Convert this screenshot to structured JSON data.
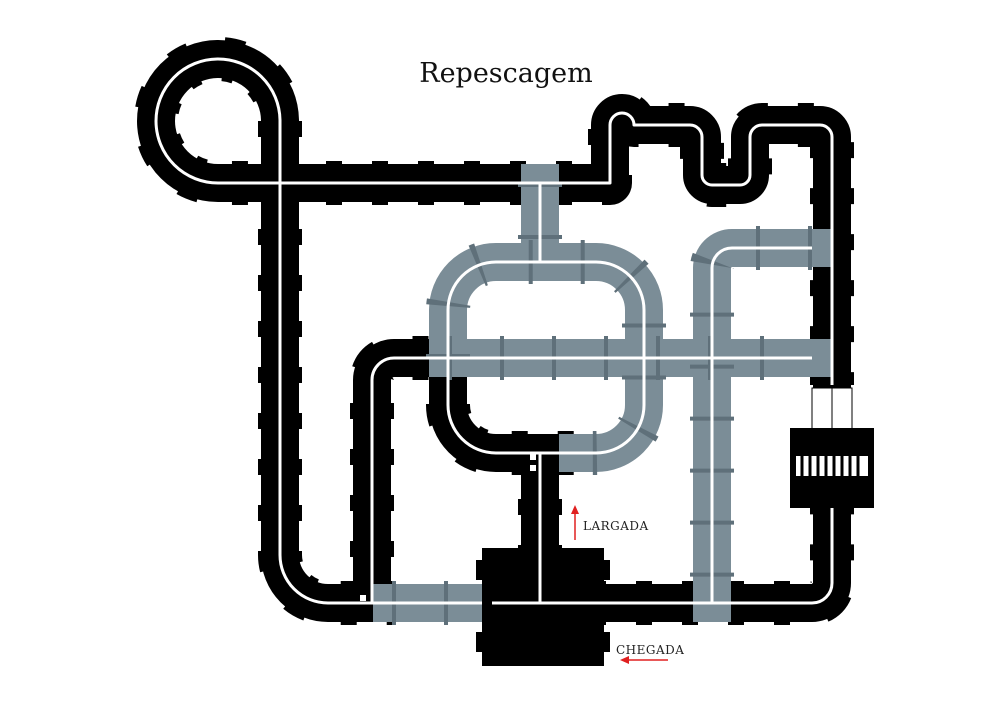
{
  "title": "Repescagem",
  "labels": {
    "start": "LARGADA",
    "finish": "CHEGADA"
  },
  "colors": {
    "track_dark": "#000000",
    "track_light": "#7b8d97",
    "lane_line": "#ffffff",
    "arrow": "#e02020",
    "background": "#ffffff"
  },
  "icons": {
    "start_arrow": "arrow-up-icon",
    "finish_arrow": "arrow-left-icon",
    "crosswalk": "crosswalk-icon"
  }
}
